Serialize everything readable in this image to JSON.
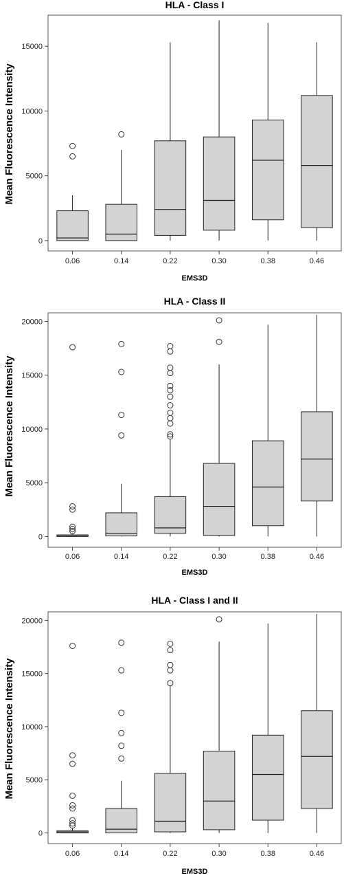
{
  "chart_data": [
    {
      "type": "boxplot",
      "title": "HLA - Class I",
      "xlabel": "EMS3D",
      "ylabel": "Mean Fluorescence Intensity",
      "categories": [
        "0.06",
        "0.14",
        "0.22",
        "0.30",
        "0.38",
        "0.46"
      ],
      "ylim": [
        -800,
        17400
      ],
      "yticks": [
        0,
        5000,
        10000,
        15000
      ],
      "boxes": [
        {
          "min": 0,
          "q1": 0,
          "median": 200,
          "q3": 2300,
          "max": 3500,
          "outliers": [
            6500,
            7300
          ]
        },
        {
          "min": 0,
          "q1": 0,
          "median": 500,
          "q3": 2800,
          "max": 7000,
          "outliers": [
            8200
          ]
        },
        {
          "min": 0,
          "q1": 400,
          "median": 2400,
          "q3": 7700,
          "max": 15300,
          "outliers": []
        },
        {
          "min": 0,
          "q1": 800,
          "median": 3100,
          "q3": 8000,
          "max": 17000,
          "outliers": []
        },
        {
          "min": 0,
          "q1": 1600,
          "median": 6200,
          "q3": 9300,
          "max": 16800,
          "outliers": []
        },
        {
          "min": 0,
          "q1": 1000,
          "median": 5800,
          "q3": 11200,
          "max": 15300,
          "outliers": []
        }
      ]
    },
    {
      "type": "boxplot",
      "title": "HLA - Class II",
      "xlabel": "EMS3D",
      "ylabel": "Mean Fluorescence Intensity",
      "categories": [
        "0.06",
        "0.14",
        "0.22",
        "0.30",
        "0.38",
        "0.46"
      ],
      "ylim": [
        -1000,
        20800
      ],
      "yticks": [
        0,
        5000,
        10000,
        15000,
        20000
      ],
      "boxes": [
        {
          "min": 0,
          "q1": 0,
          "median": 50,
          "q3": 150,
          "max": 300,
          "outliers": [
            500,
            700,
            900,
            2500,
            2800,
            17600
          ]
        },
        {
          "min": 0,
          "q1": 50,
          "median": 300,
          "q3": 2200,
          "max": 4900,
          "outliers": [
            9400,
            11300,
            15300,
            17900
          ]
        },
        {
          "min": 0,
          "q1": 300,
          "median": 800,
          "q3": 3700,
          "max": 9000,
          "outliers": [
            9300,
            9500,
            10500,
            11000,
            11500,
            12200,
            13000,
            13600,
            14000,
            15200,
            15700,
            17200,
            17700
          ]
        },
        {
          "min": 0,
          "q1": 100,
          "median": 2800,
          "q3": 6800,
          "max": 16000,
          "outliers": [
            18100,
            20100
          ]
        },
        {
          "min": 0,
          "q1": 1000,
          "median": 4600,
          "q3": 8900,
          "max": 19700,
          "outliers": []
        },
        {
          "min": 0,
          "q1": 3300,
          "median": 7200,
          "q3": 11600,
          "max": 20600,
          "outliers": []
        }
      ]
    },
    {
      "type": "boxplot",
      "title": "HLA - Class I and II",
      "xlabel": "EMS3D",
      "ylabel": "Mean Fluorescence Intensity",
      "categories": [
        "0.06",
        "0.14",
        "0.22",
        "0.30",
        "0.38",
        "0.46"
      ],
      "ylim": [
        -1000,
        20800
      ],
      "yticks": [
        0,
        5000,
        10000,
        15000,
        20000
      ],
      "boxes": [
        {
          "min": 0,
          "q1": 0,
          "median": 100,
          "q3": 200,
          "max": 500,
          "outliers": [
            700,
            900,
            1200,
            2300,
            2600,
            3500,
            6500,
            7300,
            17600
          ]
        },
        {
          "min": 0,
          "q1": 0,
          "median": 350,
          "q3": 2300,
          "max": 4900,
          "outliers": [
            7000,
            8200,
            9400,
            11300,
            15300,
            17900
          ]
        },
        {
          "min": 0,
          "q1": 100,
          "median": 1100,
          "q3": 5600,
          "max": 13900,
          "outliers": [
            14100,
            15300,
            15800,
            17200,
            17800
          ]
        },
        {
          "min": 0,
          "q1": 300,
          "median": 3000,
          "q3": 7700,
          "max": 18000,
          "outliers": [
            20100
          ]
        },
        {
          "min": 0,
          "q1": 1200,
          "median": 5500,
          "q3": 9200,
          "max": 19700,
          "outliers": []
        },
        {
          "min": 0,
          "q1": 2300,
          "median": 7200,
          "q3": 11500,
          "max": 20600,
          "outliers": []
        }
      ]
    }
  ]
}
